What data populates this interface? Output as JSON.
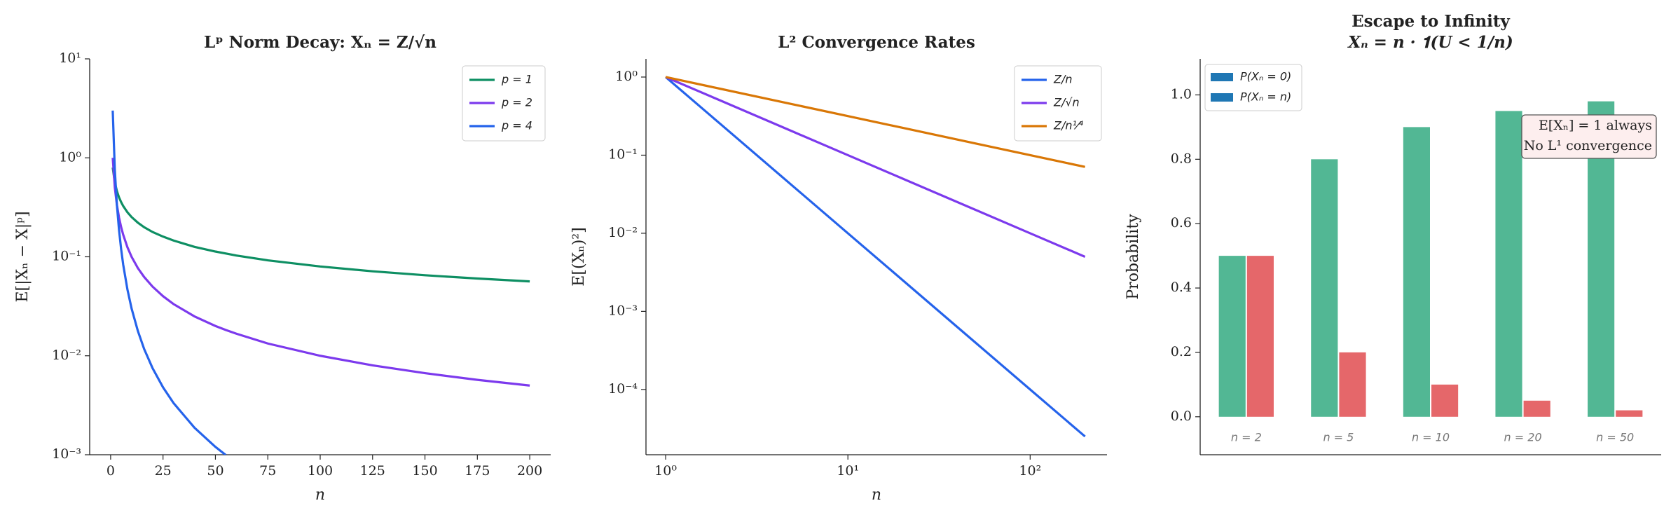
{
  "chart_data": [
    {
      "type": "line",
      "title": "Lᵖ Norm Decay: Xₙ = Z/√n",
      "title_color": "#7c3aed",
      "xlabel": "n",
      "ylabel": "E[|Xₙ − X|ᵖ]",
      "ylog": true,
      "xlog": false,
      "legend": "upper right",
      "x": [
        1,
        2,
        3,
        4,
        5,
        6,
        8,
        10,
        13,
        16,
        20,
        25,
        30,
        40,
        50,
        55,
        60,
        75,
        100,
        125,
        150,
        175,
        200
      ],
      "series": [
        {
          "name": "p = 1",
          "color": "#0e8f63",
          "values": [
            0.798,
            0.564,
            0.461,
            0.399,
            0.357,
            0.326,
            0.282,
            0.252,
            0.221,
            0.199,
            0.178,
            0.16,
            0.146,
            0.126,
            0.113,
            0.108,
            0.103,
            0.0921,
            0.0798,
            0.0714,
            0.0651,
            0.0603,
            0.0564
          ]
        },
        {
          "name": "p = 2",
          "color": "#7c3aed",
          "values": [
            1,
            0.5,
            0.333,
            0.25,
            0.2,
            0.167,
            0.125,
            0.1,
            0.0769,
            0.0625,
            0.05,
            0.04,
            0.0333,
            0.025,
            0.02,
            0.0182,
            0.0167,
            0.0133,
            0.01,
            0.008,
            0.00667,
            0.00571,
            0.005
          ]
        },
        {
          "name": "p = 4",
          "color": "#2563eb",
          "values": [
            3,
            0.75,
            0.333,
            0.1875,
            0.12,
            0.0833,
            0.0469,
            0.03,
            0.0178,
            0.0117,
            0.0075,
            0.0048,
            0.00333,
            0.001875,
            0.0012,
            0.000992,
            null,
            null,
            null,
            null,
            null,
            null,
            null
          ]
        }
      ],
      "xlim": [
        -10,
        210
      ],
      "xticks": [
        0,
        25,
        50,
        75,
        100,
        125,
        150,
        175,
        200
      ],
      "ylim": [
        0.001,
        10
      ],
      "yticks": [
        {
          "value": 0.001,
          "label": "10⁻³"
        },
        {
          "value": 0.01,
          "label": "10⁻²"
        },
        {
          "value": 0.1,
          "label": "10⁻¹"
        },
        {
          "value": 1,
          "label": "10⁰"
        },
        {
          "value": 10,
          "label": "10¹"
        }
      ]
    },
    {
      "type": "line",
      "title": "L² Convergence Rates",
      "title_color": "#7c3aed",
      "xlabel": "n",
      "ylabel": "E[(Xₙ)²]",
      "ylog": true,
      "xlog": true,
      "legend": "upper right",
      "x": [
        1,
        2,
        5,
        10,
        20,
        50,
        100,
        200
      ],
      "series": [
        {
          "name": "Z/n",
          "color": "#2563eb",
          "values": [
            1,
            0.25,
            0.04,
            0.01,
            0.0025,
            0.0004,
            0.0001,
            2.5e-05
          ]
        },
        {
          "name": "Z/√n",
          "color": "#7c3aed",
          "values": [
            1,
            0.5,
            0.2,
            0.1,
            0.05,
            0.02,
            0.01,
            0.005
          ]
        },
        {
          "name": "Z/n¹⁄⁴",
          "color": "#d97706",
          "values": [
            1,
            0.7071,
            0.4472,
            0.3162,
            0.2236,
            0.1414,
            0.1,
            0.0707
          ]
        }
      ],
      "xlim": [
        0.78,
        264
      ],
      "xticks": [
        {
          "value": 1,
          "label": "10⁰"
        },
        {
          "value": 10,
          "label": "10¹"
        },
        {
          "value": 100,
          "label": "10²"
        }
      ],
      "ylim": [
        1.46e-05,
        1.71
      ],
      "yticks": [
        {
          "value": 0.0001,
          "label": "10⁻⁴"
        },
        {
          "value": 0.001,
          "label": "10⁻³"
        },
        {
          "value": 0.01,
          "label": "10⁻²"
        },
        {
          "value": 0.1,
          "label": "10⁻¹"
        },
        {
          "value": 1,
          "label": "10⁰"
        }
      ]
    },
    {
      "type": "bar",
      "title": "Escape to Infinity",
      "subtitle": "Xₙ = n · 𝟏(U < 1/n)",
      "title_color": "#d62728",
      "ylabel": "Probability",
      "legend": "upper left",
      "legend_patch_color": "#1f77b4",
      "categories": [
        "n = 2",
        "n = 5",
        "n = 10",
        "n = 20",
        "n = 50"
      ],
      "series": [
        {
          "name": "P(Xₙ = 0)",
          "color": "#52b794",
          "values": [
            0.5,
            0.8,
            0.9,
            0.95,
            0.98
          ]
        },
        {
          "name": "P(Xₙ = n)",
          "color": "#e5676a",
          "values": [
            0.5,
            0.2,
            0.1,
            0.05,
            0.02
          ]
        }
      ],
      "ylim": [
        -0.118,
        1.112
      ],
      "yticks": [
        {
          "value": 0,
          "label": "0.0"
        },
        0.2,
        0.4,
        0.6,
        0.8,
        {
          "value": 1,
          "label": "1.0"
        }
      ],
      "annotations": [
        "E[Xₙ] = 1 always",
        "No L¹ convergence"
      ]
    }
  ]
}
